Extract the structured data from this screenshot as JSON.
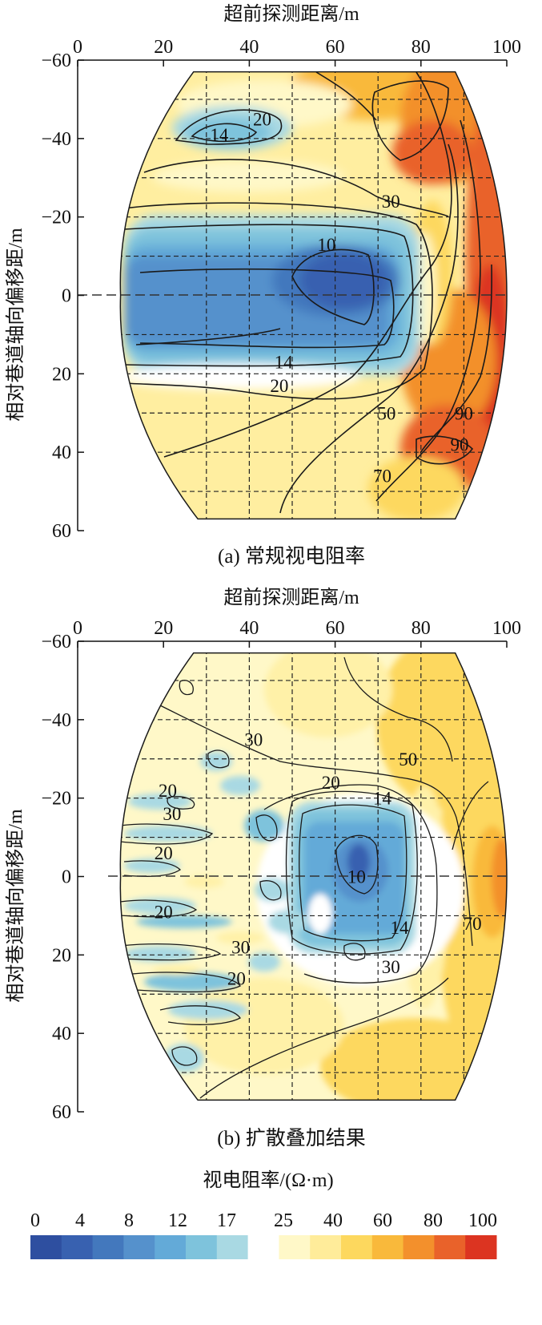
{
  "chart_data": [
    {
      "type": "heatmap",
      "panel": "a",
      "caption": "(a)  常规视电阻率",
      "xlabel": "超前探测距离/m",
      "ylabel": "相对巷道轴向偏移距/m",
      "xticks": [
        "0",
        "20",
        "40",
        "60",
        "80",
        "100"
      ],
      "yticks": [
        "-60",
        "-40",
        "-20",
        "0",
        "20",
        "40",
        "60"
      ],
      "xlim": [
        0,
        100
      ],
      "ylim": [
        -60,
        60
      ],
      "contour_labels": [
        {
          "text": "20",
          "x": 43,
          "y": -45
        },
        {
          "text": "14",
          "x": 33,
          "y": -41
        },
        {
          "text": "30",
          "x": 73,
          "y": -24
        },
        {
          "text": "10",
          "x": 58,
          "y": -13
        },
        {
          "text": "14",
          "x": 48,
          "y": 17
        },
        {
          "text": "20",
          "x": 47,
          "y": 23
        },
        {
          "text": "50",
          "x": 72,
          "y": 30
        },
        {
          "text": "90",
          "x": 90,
          "y": 30
        },
        {
          "text": "90",
          "x": 89,
          "y": 38
        },
        {
          "text": "70",
          "x": 71,
          "y": 46
        }
      ]
    },
    {
      "type": "heatmap",
      "panel": "b",
      "caption": "(b)  扩散叠加结果",
      "xlabel": "超前探测距离/m",
      "ylabel": "相对巷道轴向偏移距/m",
      "xticks": [
        "0",
        "20",
        "40",
        "60",
        "80",
        "100"
      ],
      "yticks": [
        "-60",
        "-40",
        "-20",
        "0",
        "20",
        "40",
        "60"
      ],
      "xlim": [
        0,
        100
      ],
      "ylim": [
        -60,
        60
      ],
      "contour_labels": [
        {
          "text": "30",
          "x": 41,
          "y": -35
        },
        {
          "text": "50",
          "x": 77,
          "y": -30
        },
        {
          "text": "20",
          "x": 21,
          "y": -22
        },
        {
          "text": "20",
          "x": 59,
          "y": -24
        },
        {
          "text": "14",
          "x": 71,
          "y": -20
        },
        {
          "text": "30",
          "x": 22,
          "y": -16
        },
        {
          "text": "20",
          "x": 20,
          "y": -6
        },
        {
          "text": "10",
          "x": 65,
          "y": 0
        },
        {
          "text": "20",
          "x": 20,
          "y": 9
        },
        {
          "text": "14",
          "x": 75,
          "y": 13
        },
        {
          "text": "70",
          "x": 92,
          "y": 12
        },
        {
          "text": "30",
          "x": 38,
          "y": 18
        },
        {
          "text": "30",
          "x": 73,
          "y": 23
        },
        {
          "text": "20",
          "x": 37,
          "y": 26
        }
      ]
    }
  ],
  "colorbar": {
    "title": "视电阻率/(Ω·m)",
    "ticks": [
      "0",
      "4",
      "8",
      "12",
      "17",
      "25",
      "40",
      "60",
      "80",
      "100"
    ],
    "colors": [
      "#2e4fa0",
      "#3861b0",
      "#4378bd",
      "#5591cc",
      "#63aad8",
      "#7ec3dc",
      "#a9d9e3",
      "#ffffff",
      "#fff8c8",
      "#ffec9a",
      "#fdd85e",
      "#f9b93b",
      "#f3902c",
      "#e9622a",
      "#dc3421"
    ]
  }
}
